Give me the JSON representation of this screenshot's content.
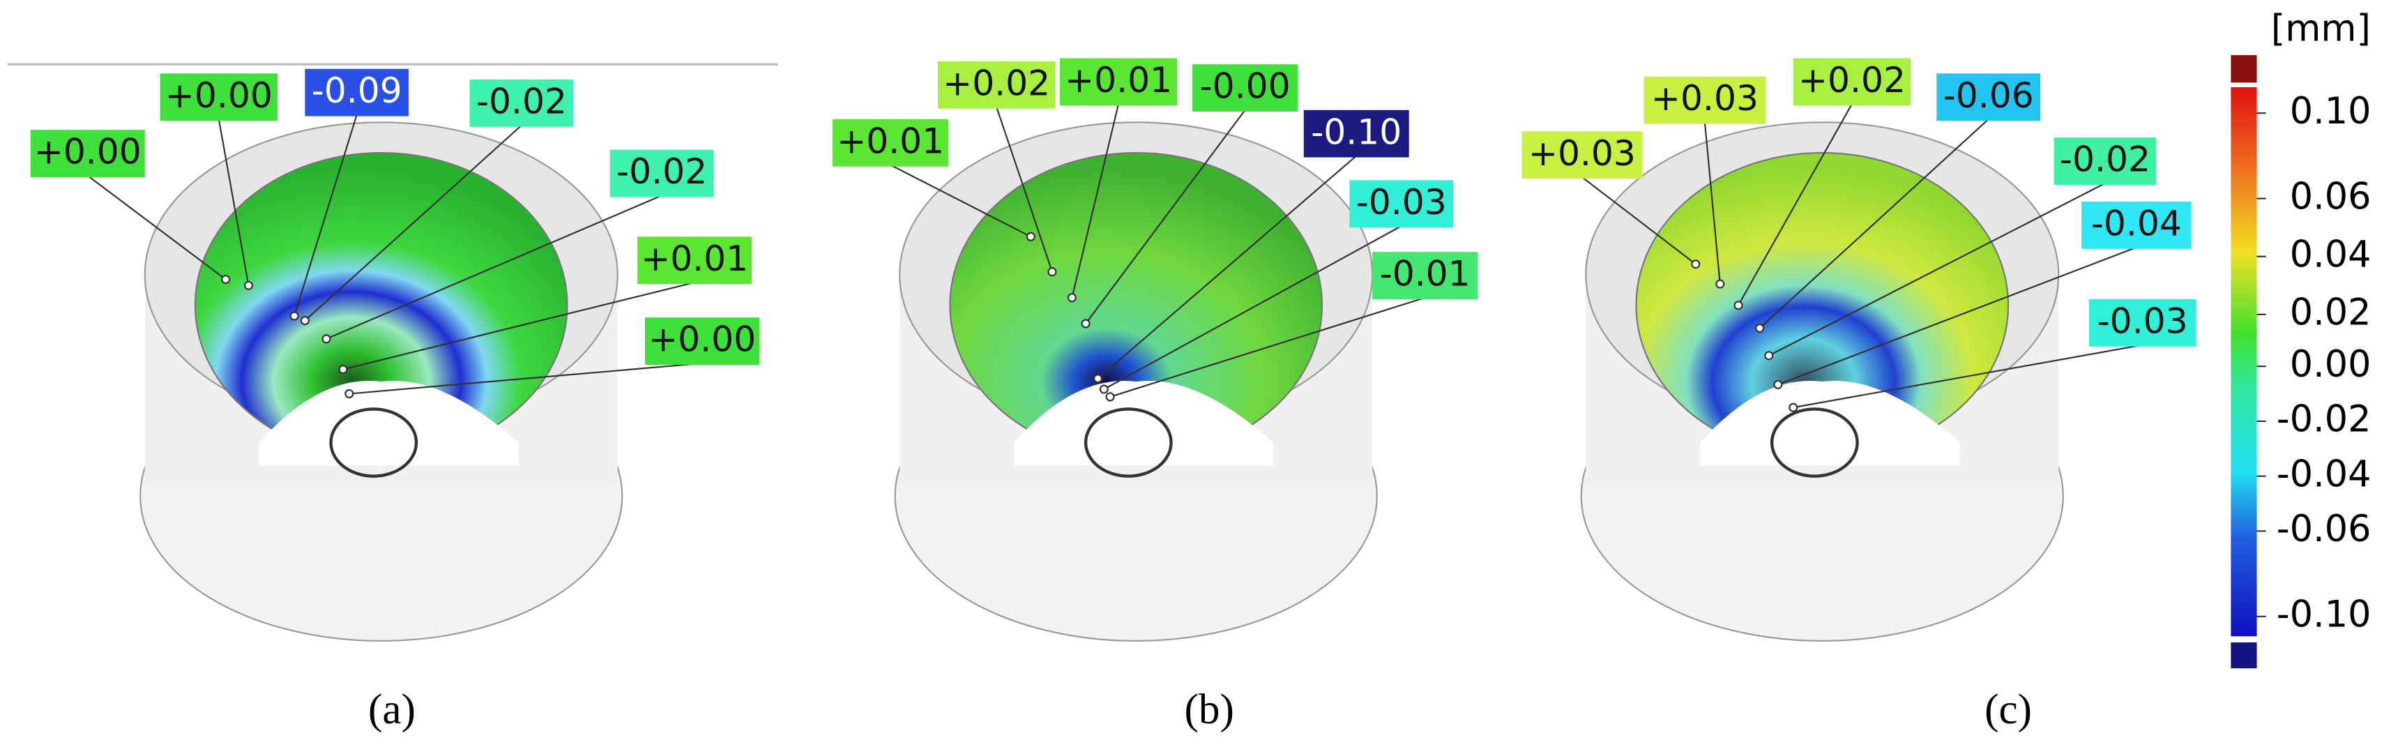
{
  "panels": [
    {
      "caption": "(a)",
      "labels": [
        {
          "text": "+0.00",
          "color": "#3ee03a"
        },
        {
          "text": "+0.00",
          "color": "#3ee03a"
        },
        {
          "text": "-0.09",
          "color": "#2a4fe6"
        },
        {
          "text": "-0.02",
          "color": "#3ff0b0"
        },
        {
          "text": "-0.02",
          "color": "#3ff0b0"
        },
        {
          "text": "+0.01",
          "color": "#5ae632"
        },
        {
          "text": "+0.00",
          "color": "#3ee03a"
        }
      ]
    },
    {
      "caption": "(b)",
      "labels": [
        {
          "text": "+0.01",
          "color": "#5ae632"
        },
        {
          "text": "+0.02",
          "color": "#a8f040"
        },
        {
          "text": "+0.01",
          "color": "#5ae632"
        },
        {
          "text": "-0.00",
          "color": "#3ee03a"
        },
        {
          "text": "-0.10",
          "color": "#1a1a80"
        },
        {
          "text": "-0.03",
          "color": "#30f0d8"
        },
        {
          "text": "-0.01",
          "color": "#44e870"
        }
      ]
    },
    {
      "caption": "(c)",
      "labels": [
        {
          "text": "+0.03",
          "color": "#c8f040"
        },
        {
          "text": "+0.03",
          "color": "#c8f040"
        },
        {
          "text": "+0.02",
          "color": "#a8f040"
        },
        {
          "text": "-0.06",
          "color": "#22c4f2"
        },
        {
          "text": "-0.02",
          "color": "#3ff0a0"
        },
        {
          "text": "-0.04",
          "color": "#30e8f5"
        },
        {
          "text": "-0.03",
          "color": "#30f0d8"
        }
      ]
    }
  ],
  "colorbar": {
    "unit": "[mm]",
    "ticks": [
      "0.10",
      "0.06",
      "0.04",
      "0.02",
      "0.00",
      "-0.02",
      "-0.04",
      "-0.06",
      "-0.10"
    ]
  }
}
